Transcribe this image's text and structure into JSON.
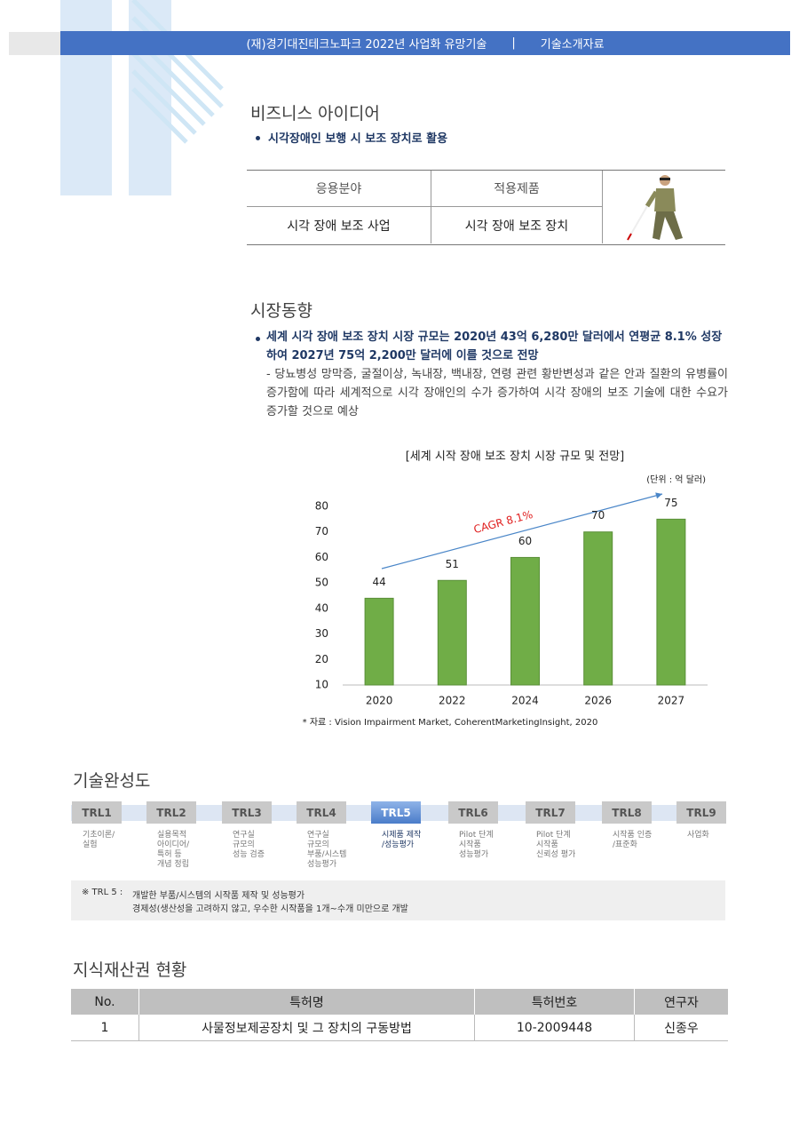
{
  "header": {
    "org": "(재)경기대진테크노파크 2022년 사업화 유망기술",
    "separator": "|",
    "doc": "기술소개자료"
  },
  "business": {
    "title": "비즈니스 아이디어",
    "bullet": "시각장애인 보행 시 보조 장치로 활용",
    "table": {
      "headers": [
        "응용분야",
        "적용제품"
      ],
      "rows": [
        [
          "시각 장애 보조 사업",
          "시각 장애 보조 장치"
        ]
      ]
    }
  },
  "market": {
    "title": "시장동향",
    "bullet": "세계 시각 장애 보조 장치 시장 규모는 2020년 43억 6,280만 달러에서 연평균 8.1% 성장하여 2027년 75억 2,200만 달러에 이를 것으로 전망",
    "detail": "- 당뇨병성 망막증, 굴절이상, 녹내장, 백내장, 연령 관련 황반변성과 같은 안과 질환의 유병률이 증가함에 따라 세계적으로 시각 장애인의 수가 증가하여 시각 장애의 보조 기술에 대한 수요가 증가할 것으로 예상"
  },
  "chart_data": {
    "type": "bar",
    "title": "[세계 시작 장애 보조 장치 시장 규모 및 전망]",
    "unit": "(단위 : 억 달러)",
    "categories": [
      "2020",
      "2022",
      "2024",
      "2026",
      "2027"
    ],
    "values": [
      44,
      51,
      60,
      70,
      75
    ],
    "color": "#70ad47",
    "ylim": [
      10,
      80
    ],
    "yticks": [
      10,
      20,
      30,
      40,
      50,
      60,
      70,
      80
    ],
    "annotation": "CAGR 8.1%",
    "source": "* 자료 : Vision Impairment Market, CoherentMarketingInsight, 2020"
  },
  "trl": {
    "title": "기술완성도",
    "active": 4,
    "stages": [
      {
        "label": "TRL1",
        "desc": "기초이론/\n실험"
      },
      {
        "label": "TRL2",
        "desc": "실용목적\n아이디어/\n특허 등\n개념 정립"
      },
      {
        "label": "TRL3",
        "desc": "연구실\n규모의\n성능 검증"
      },
      {
        "label": "TRL4",
        "desc": "연구실\n규모의\n부품/시스템\n성능평가"
      },
      {
        "label": "TRL5",
        "desc": "시제품 제작\n/성능평가"
      },
      {
        "label": "TRL6",
        "desc": "Pilot 단계\n시작품\n성능평가"
      },
      {
        "label": "TRL7",
        "desc": "Pilot 단계\n시작품\n신뢰성 평가"
      },
      {
        "label": "TRL8",
        "desc": "시작품 인증\n/표준화"
      },
      {
        "label": "TRL9",
        "desc": "사업화"
      }
    ],
    "note_label": "※ TRL 5  :",
    "note_lines": [
      "개발한 부품/시스템의 시작품 제작 및 성능평가",
      "경제성(생산성을 고려하지 않고, 우수한 시작품을 1개~수개 미만으로 개발"
    ]
  },
  "ip": {
    "title": "지식재산권 현황",
    "headers": [
      "No.",
      "특허명",
      "특허번호",
      "연구자"
    ],
    "rows": [
      [
        "1",
        "사물정보제공장치 및 그 장치의 구동방법",
        "10-2009448",
        "신종우"
      ]
    ]
  }
}
